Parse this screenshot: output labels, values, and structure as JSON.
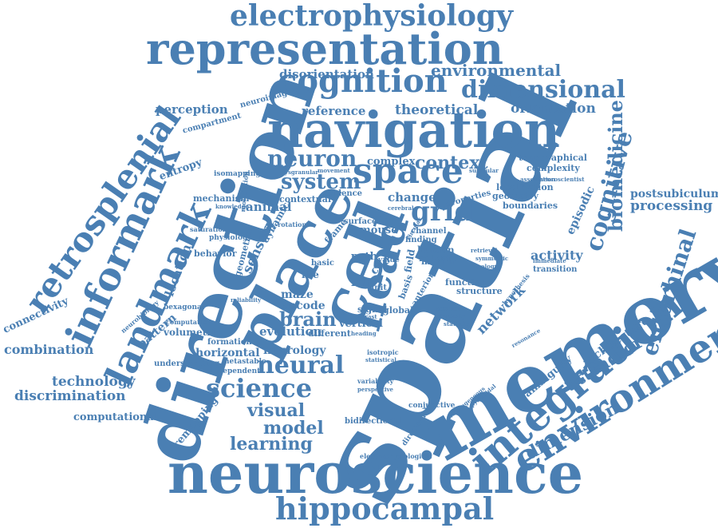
{
  "colors": {
    "word": "#4a7fb3",
    "background": "#ffffff"
  },
  "words": {
    "spatial": "spatial",
    "memory": "memory",
    "direction": "direction",
    "neuroscience": "neuroscience",
    "navigation": "navigation",
    "representation": "representation",
    "electrophysiology": "electrophysiology",
    "cognition": "cognition",
    "dimensional": "dimensional",
    "environmental": "environmental",
    "disorientation": "disorientation",
    "place": "place",
    "cell": "cell",
    "head": "head",
    "space": "space",
    "integration": "integration",
    "environment": "environment",
    "informark": "informark",
    "landmark": "landmark",
    "retrosplenial": "retrosplenial",
    "hippocampal": "hippocampal",
    "grid": "grid",
    "cognitive": "cognitive",
    "biomedicine": "biomedicine",
    "entorhinal": "entorhinal",
    "neuron": "neuron",
    "context": "context",
    "system": "system",
    "science": "science",
    "neural": "neural",
    "brain": "brain",
    "visual": "visual",
    "model": "model",
    "learning": "learning",
    "attractor": "attractor",
    "dimension": "dimension",
    "perception": "perception",
    "reference": "reference",
    "theoretical": "theoretical",
    "orientation": "orientation",
    "postsubiculum": "postsubiculum",
    "processing": "processing",
    "combination": "combination",
    "technology": "technology",
    "discrimination": "discrimination",
    "computational": "computational",
    "connectivity": "connectivity",
    "architecture": "architecture",
    "episodic": "episodic",
    "network": "network",
    "activity": "activity",
    "ambiguity": "ambiguity",
    "remapping": "remapping",
    "pattern": "pattern",
    "location": "location",
    "evolution": "evolution",
    "neurology": "neurology",
    "horizontal": "horizontal",
    "formation": "formation",
    "volumetric": "volumetric",
    "sensory": "sensory",
    "animal": "animal",
    "change": "change",
    "topographical": "topographical",
    "complexity": "complexity",
    "complex": "complex",
    "localization": "localization",
    "geometry": "geometry",
    "boundaries": "boundaries",
    "entropy": "entropy",
    "compartment": "compartment",
    "neuroimaging": "neuroimaging",
    "mechanism": "mechanism",
    "behavior": "behavior",
    "isomapping": "isomapping",
    "contextual": "contextual",
    "evidence": "evidence",
    "mouse": "mouse",
    "surface": "surface",
    "maze": "maze",
    "encode": "encode",
    "rat": "rat",
    "cue": "cue",
    "path": "path",
    "life": "life",
    "human": "human",
    "rodent": "rodent",
    "motion": "motion",
    "function": "function",
    "structure": "structure",
    "signal": "signal",
    "global": "global",
    "vertical": "vertical",
    "transition": "transition",
    "bidirectional": "bidirectional",
    "conjunctive": "conjunctive",
    "directional": "directional",
    "electrophysiological": "electrophysiological",
    "independent": "independent",
    "metastable": "metastable",
    "understanding": "understanding",
    "computation": "computation",
    "bexagonal": "bexagonal",
    "neurobiology": "neurobiology",
    "physiology": "physiology",
    "saturation": "saturation",
    "dynamic": "dynamic",
    "basis": "basis",
    "field": "field",
    "channel": "channel",
    "finding": "finding",
    "rotation": "rotation",
    "different": "different",
    "isotropic": "isotropic",
    "variability": "variability",
    "immediate": "immediate",
    "association": "association",
    "neuroscientist": "neuroscientist",
    "properties": "properties",
    "geometric": "geometric",
    "basic": "basic",
    "unit": "unit",
    "value": "value",
    "frame": "frame",
    "knowledge": "knowledge",
    "retrieval": "retrieval",
    "hypothesis": "hypothesis",
    "resonance": "resonance",
    "heading": "heading",
    "contrast": "contrast",
    "position": "position",
    "plasticity": "plasticity",
    "statistic": "statistic",
    "reliability": "reliability",
    "statistical": "statistical",
    "heterogeneous": "heterogeneous",
    "perspective": "perspective",
    "symmetric": "symmetric",
    "topology": "topology",
    "circular": "circular",
    "anterior": "anterior",
    "modulation": "modulation",
    "cerebral": "cerebral",
    "dysgranular": "dysgranular",
    "movement": "movement",
    "subicular": "subicular",
    "pyramidal": "pyramidal"
  }
}
